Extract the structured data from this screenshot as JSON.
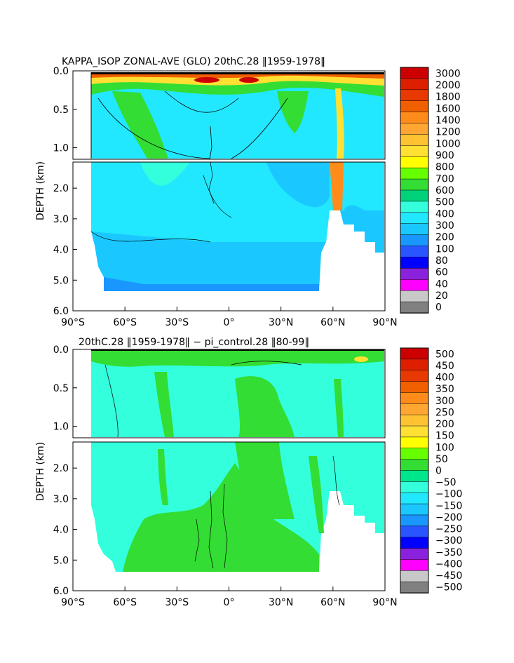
{
  "chart_data": [
    {
      "type": "heatmap",
      "title": "KAPPA_ISOP ZONAL-AVE (GLO) 20thC.28 ‖1959-1978‖",
      "ylabel": "DEPTH (km)",
      "x_ticks": [
        "90°S",
        "60°S",
        "30°S",
        "0°",
        "30°N",
        "60°N",
        "90°N"
      ],
      "x_values": [
        -90,
        -60,
        -30,
        0,
        30,
        60,
        90
      ],
      "y_ticks_upper": [
        "0.0",
        "0.5",
        "1.0"
      ],
      "y_ticks_lower": [
        "2.0",
        "3.0",
        "4.0",
        "5.0",
        "6.0"
      ],
      "ylim_upper": [
        0,
        1.15
      ],
      "ylim_lower": [
        1.15,
        6.0
      ],
      "colorbar_labels": [
        "3000",
        "2000",
        "1800",
        "1600",
        "1400",
        "1200",
        "1000",
        "900",
        "800",
        "700",
        "600",
        "500",
        "400",
        "300",
        "200",
        "100",
        "80",
        "60",
        "40",
        "20",
        "0"
      ],
      "colorbar_colors": [
        "#cc0000",
        "#dd1f00",
        "#e83a00",
        "#f06000",
        "#ff8c1a",
        "#ffa633",
        "#ffc233",
        "#ffe033",
        "#ffff00",
        "#66ff00",
        "#33dd33",
        "#00d27a",
        "#33ffdd",
        "#22e8ff",
        "#1ac8ff",
        "#1a96ff",
        "#2855ff",
        "#0000ff",
        "#8a22dd",
        "#ff00ff",
        "#c8c8c8",
        "#808080"
      ]
    },
    {
      "type": "heatmap",
      "title": "20thC.28 ‖1959-1978‖ − pi_control.28 ‖80-99‖",
      "ylabel": "DEPTH (km)",
      "x_ticks": [
        "90°S",
        "60°S",
        "30°S",
        "0°",
        "30°N",
        "60°N",
        "90°N"
      ],
      "x_values": [
        -90,
        -60,
        -30,
        0,
        30,
        60,
        90
      ],
      "y_ticks_upper": [
        "0.0",
        "0.5",
        "1.0"
      ],
      "y_ticks_lower": [
        "2.0",
        "3.0",
        "4.0",
        "5.0",
        "6.0"
      ],
      "ylim_upper": [
        0,
        1.15
      ],
      "ylim_lower": [
        1.15,
        6.0
      ],
      "colorbar_labels": [
        "500",
        "450",
        "400",
        "350",
        "300",
        "250",
        "200",
        "150",
        "100",
        "50",
        "0",
        "−50",
        "−100",
        "−150",
        "−200",
        "−250",
        "−300",
        "−350",
        "−400",
        "−450",
        "−500"
      ],
      "colorbar_colors": [
        "#cc0000",
        "#dd1f00",
        "#e83a00",
        "#f06000",
        "#ff8c1a",
        "#ffa633",
        "#ffc233",
        "#ffe033",
        "#ffff00",
        "#66ff00",
        "#33dd33",
        "#00e68c",
        "#33ffdd",
        "#22e8ff",
        "#1ac8ff",
        "#1a96ff",
        "#2855ff",
        "#0000ff",
        "#8a22dd",
        "#ff00ff",
        "#c8c8c8",
        "#808080"
      ]
    }
  ]
}
